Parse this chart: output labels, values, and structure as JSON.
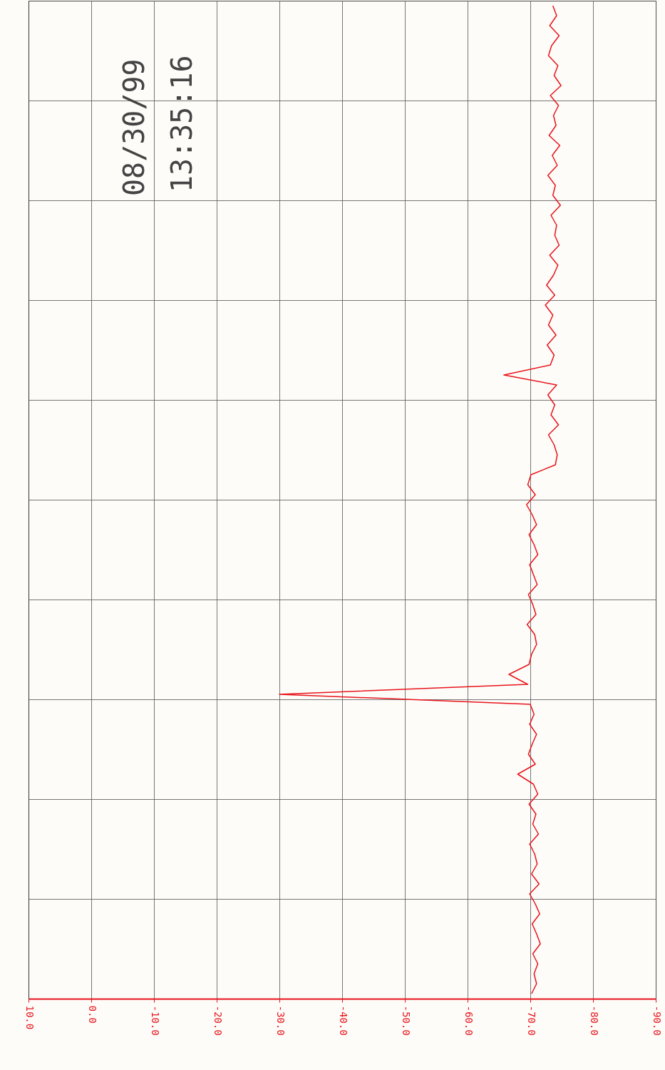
{
  "chart_data": {
    "type": "line",
    "orientation": "horizontal",
    "color": "#e8141c",
    "categories": [
      null,
      null,
      null,
      null,
      null,
      null,
      null,
      null,
      null,
      null,
      null,
      null,
      null,
      null,
      null,
      null,
      null,
      null,
      null,
      null,
      null,
      null,
      null,
      null,
      null,
      null,
      null,
      null,
      null,
      null,
      null,
      null,
      null,
      null,
      null,
      null,
      null,
      null,
      null,
      null,
      null,
      null,
      null,
      null,
      null,
      null,
      null,
      null,
      null,
      null,
      null,
      null,
      null,
      null,
      null,
      null,
      null,
      null,
      null,
      null,
      null,
      null,
      null,
      null,
      null,
      null,
      null,
      null,
      null,
      null,
      null,
      null,
      null,
      null,
      null,
      null,
      null,
      null,
      null,
      null,
      null,
      null,
      null,
      null,
      null,
      null,
      null,
      null,
      null,
      null,
      null,
      null,
      null,
      null,
      null,
      null,
      null,
      null,
      null,
      null
    ],
    "values": [
      -73.6,
      -74.2,
      -73.1,
      -74.6,
      -73.4,
      -72.9,
      -74.4,
      -73.8,
      -74.9,
      -73.2,
      -74.5,
      -73.7,
      -74.1,
      -73.0,
      -74.7,
      -73.5,
      -74.3,
      -72.8,
      -74.0,
      -73.6,
      -74.8,
      -73.3,
      -74.2,
      -73.9,
      -74.6,
      -73.1,
      -74.4,
      -73.7,
      -72.6,
      -73.9,
      -72.4,
      -73.6,
      -72.9,
      -74.1,
      -72.7,
      -73.8,
      -73.2,
      -65.8,
      -74.2,
      -72.8,
      -73.9,
      -73.3,
      -74.5,
      -72.9,
      -73.8,
      -74.3,
      -74.0,
      -70.1,
      -69.6,
      -70.8,
      -69.4,
      -70.3,
      -71.0,
      -69.8,
      -70.6,
      -71.2,
      -69.9,
      -70.5,
      -71.1,
      -69.7,
      -70.4,
      -70.9,
      -69.5,
      -70.7,
      -71.0,
      -70.2,
      -69.8,
      -66.6,
      -69.6,
      -30.0,
      -70.0,
      -70.6,
      -69.9,
      -71.0,
      -70.3,
      -69.7,
      -70.8,
      -68.0,
      -70.5,
      -71.2,
      -69.8,
      -70.9,
      -70.4,
      -71.3,
      -69.9,
      -70.7,
      -71.1,
      -70.2,
      -71.4,
      -69.9,
      -70.8,
      -71.5,
      -70.3,
      -71.0,
      -71.6,
      -70.4,
      -71.2,
      -70.6,
      -71.0,
      -70.2
    ],
    "xlim": [
      10,
      -90
    ],
    "xticks": [
      {
        "value": 10,
        "label": "10.0"
      },
      {
        "value": 0,
        "label": "0.0"
      },
      {
        "value": -10,
        "label": "-10.0"
      },
      {
        "value": -20,
        "label": "-20.0"
      },
      {
        "value": -30,
        "label": "-30.0"
      },
      {
        "value": -40,
        "label": "-40.0"
      },
      {
        "value": -50,
        "label": "-50.0"
      },
      {
        "value": -60,
        "label": "-60.0"
      },
      {
        "value": -70,
        "label": "-70.0"
      },
      {
        "value": -80,
        "label": "-80.0"
      },
      {
        "value": -90,
        "label": "-90.0"
      }
    ],
    "grid": true,
    "tick_labels": "x",
    "annotations": [
      "08/30/99",
      "13:35:16"
    ]
  }
}
